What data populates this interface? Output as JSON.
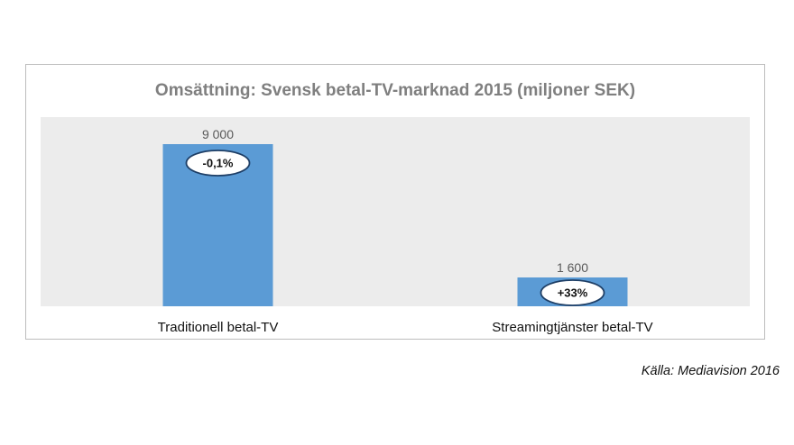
{
  "chart_data": {
    "type": "bar",
    "title": "Omsättning: Svensk betal-TV-marknad 2015 (miljoner SEK)",
    "categories": [
      "Traditionell betal-TV",
      "Streamingtjänster betal-TV"
    ],
    "values": [
      9000,
      1600
    ],
    "value_labels": [
      "9 000",
      "1 600"
    ],
    "change_labels": [
      "-0,1%",
      "+33%"
    ],
    "ylim": [
      0,
      10500
    ],
    "bar_color": "#5b9bd5",
    "plot_background": "#ececec",
    "grid": false,
    "legend": "none"
  },
  "source": "Källa: Mediavision 2016"
}
